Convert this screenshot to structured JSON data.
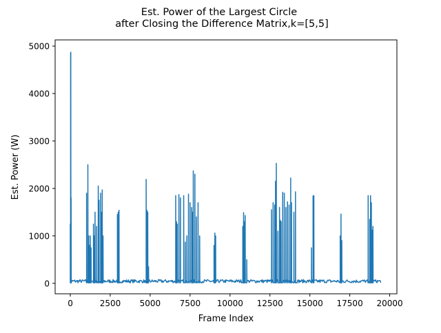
{
  "chart_data": {
    "type": "line",
    "title_lines": [
      "Est. Power of the Largest Circle",
      "after Closing the Difference Matrix,k=[5,5]"
    ],
    "xlabel": "Frame Index",
    "ylabel": "Est. Power (W)",
    "xlim": [
      -950,
      20450
    ],
    "ylim": [
      -220,
      5130
    ],
    "xticks": [
      0,
      2500,
      5000,
      7500,
      10000,
      12500,
      15000,
      17500,
      20000
    ],
    "xtick_labels": [
      "0",
      "2500",
      "5000",
      "7500",
      "10000",
      "12500",
      "15000",
      "17500",
      "20000"
    ],
    "yticks": [
      0,
      1000,
      2000,
      3000,
      4000,
      5000
    ],
    "ytick_labels": [
      "0",
      "1000",
      "2000",
      "3000",
      "4000",
      "5000"
    ],
    "grid": false,
    "series_color": "#1f77b4",
    "x_extent": [
      0,
      19450
    ],
    "baseline_range": [
      10,
      80
    ],
    "peaks": [
      [
        0,
        1250
      ],
      [
        20,
        4850
      ],
      [
        30,
        4870
      ],
      [
        50,
        1800
      ],
      [
        70,
        60
      ],
      [
        1020,
        1900
      ],
      [
        1100,
        2500
      ],
      [
        1150,
        1000
      ],
      [
        1200,
        800
      ],
      [
        1250,
        1000
      ],
      [
        1300,
        750
      ],
      [
        1450,
        1250
      ],
      [
        1500,
        1000
      ],
      [
        1550,
        1500
      ],
      [
        1650,
        1200
      ],
      [
        1750,
        2050
      ],
      [
        1800,
        1750
      ],
      [
        1900,
        1900
      ],
      [
        1950,
        1500
      ],
      [
        2000,
        1970
      ],
      [
        2050,
        1000
      ],
      [
        2950,
        1450
      ],
      [
        3000,
        1500
      ],
      [
        3050,
        1540
      ],
      [
        4750,
        2190
      ],
      [
        4800,
        1540
      ],
      [
        4850,
        1500
      ],
      [
        4900,
        350
      ],
      [
        6600,
        1850
      ],
      [
        6650,
        1300
      ],
      [
        6700,
        1250
      ],
      [
        6800,
        1870
      ],
      [
        6900,
        1800
      ],
      [
        7100,
        1850
      ],
      [
        7200,
        870
      ],
      [
        7300,
        1000
      ],
      [
        7400,
        1880
      ],
      [
        7500,
        1700
      ],
      [
        7600,
        1600
      ],
      [
        7650,
        1500
      ],
      [
        7700,
        2370
      ],
      [
        7800,
        2300
      ],
      [
        7900,
        1400
      ],
      [
        8000,
        1700
      ],
      [
        8100,
        1000
      ],
      [
        9000,
        800
      ],
      [
        9050,
        1060
      ],
      [
        9100,
        1000
      ],
      [
        10800,
        1200
      ],
      [
        10850,
        1490
      ],
      [
        10900,
        1300
      ],
      [
        10950,
        1430
      ],
      [
        11050,
        500
      ],
      [
        12600,
        1550
      ],
      [
        12700,
        1700
      ],
      [
        12800,
        1650
      ],
      [
        12850,
        2150
      ],
      [
        12900,
        2530
      ],
      [
        13000,
        1100
      ],
      [
        13100,
        1600
      ],
      [
        13150,
        1330
      ],
      [
        13200,
        1300
      ],
      [
        13300,
        1920
      ],
      [
        13400,
        1900
      ],
      [
        13500,
        1600
      ],
      [
        13600,
        1720
      ],
      [
        13700,
        1650
      ],
      [
        13800,
        2220
      ],
      [
        13850,
        1700
      ],
      [
        14000,
        1500
      ],
      [
        14100,
        1930
      ],
      [
        15100,
        750
      ],
      [
        15200,
        1840
      ],
      [
        15250,
        1850
      ],
      [
        16900,
        1000
      ],
      [
        16950,
        1460
      ],
      [
        17000,
        900
      ],
      [
        18650,
        1850
      ],
      [
        18750,
        1350
      ],
      [
        18800,
        1850
      ],
      [
        18850,
        1700
      ],
      [
        18900,
        1120
      ],
      [
        18950,
        1200
      ]
    ]
  }
}
